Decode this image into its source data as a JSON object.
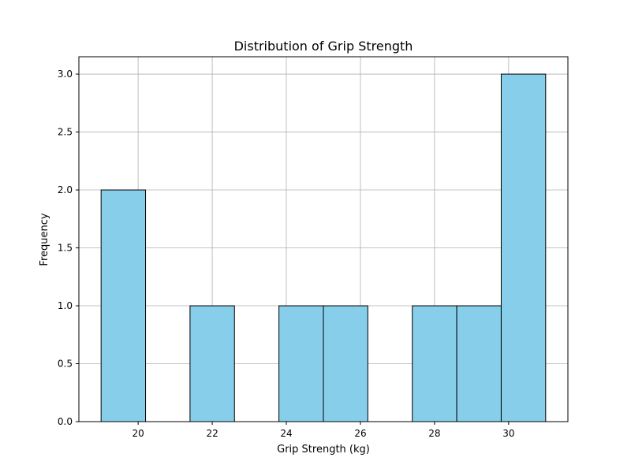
{
  "chart_data": {
    "type": "bar",
    "title": "Distribution of Grip Strength",
    "xlabel": "Grip Strength (kg)",
    "ylabel": "Frequency",
    "bin_edges": [
      19.0,
      20.2,
      21.4,
      22.6,
      23.8,
      25.0,
      26.2,
      27.4,
      28.6,
      29.8,
      31.0
    ],
    "values": [
      2,
      0,
      1,
      0,
      1,
      1,
      0,
      1,
      1,
      3
    ],
    "xlim": [
      18.4,
      31.6
    ],
    "ylim": [
      0,
      3.15
    ],
    "xticks": [
      20,
      22,
      24,
      26,
      28,
      30
    ],
    "yticks": [
      0.0,
      0.5,
      1.0,
      1.5,
      2.0,
      2.5,
      3.0
    ],
    "xtick_labels": [
      "20",
      "22",
      "24",
      "26",
      "28",
      "30"
    ],
    "ytick_labels": [
      "0.0",
      "0.5",
      "1.0",
      "1.5",
      "2.0",
      "2.5",
      "3.0"
    ],
    "grid": true,
    "colors": {
      "bar_fill": "#87CEEB",
      "bar_edge": "#000000",
      "grid": "#b0b0b0"
    }
  }
}
